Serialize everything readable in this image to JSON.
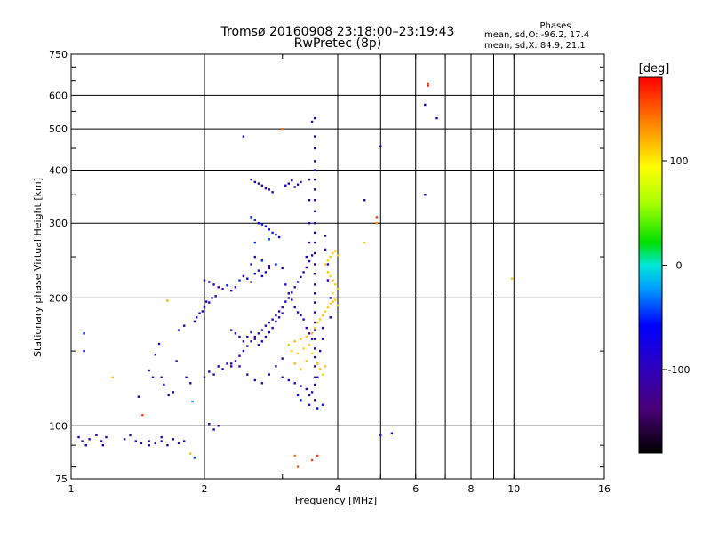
{
  "chart_data": {
    "type": "scatter",
    "title": "Tromsø 20160908 23:18:00–23:19:43",
    "subtitle": "RwPretec (8p)",
    "xlabel": "Frequency [MHz]",
    "ylabel": "Stationary phase Virtual Height [km]",
    "xscale": "log",
    "yscale": "log",
    "xlim": [
      1,
      16
    ],
    "ylim": [
      75,
      750
    ],
    "xticks": [
      1,
      2,
      4,
      6,
      8,
      10,
      16
    ],
    "xticks_minor_grid": [
      5,
      7,
      9
    ],
    "yticks": [
      75,
      100,
      200,
      300,
      400,
      500,
      600,
      750
    ],
    "grid": true,
    "stats": {
      "header": "Phases",
      "line1": "mean, sd,O: -96.2, 17.4",
      "line2": "mean, sd,X:  84.9, 21.1"
    },
    "colorbar": {
      "label": "[deg]",
      "range": [
        -180,
        180
      ],
      "ticks": [
        100,
        0,
        -100
      ]
    },
    "points": [
      [
        1.04,
        94,
        -105
      ],
      [
        1.06,
        92,
        -110
      ],
      [
        1.08,
        90,
        -100
      ],
      [
        1.1,
        93,
        -108
      ],
      [
        1.14,
        95,
        -112
      ],
      [
        1.17,
        92,
        -100
      ],
      [
        1.18,
        90,
        -105
      ],
      [
        1.2,
        94,
        -108
      ],
      [
        1.32,
        93,
        -110
      ],
      [
        1.36,
        95,
        -104
      ],
      [
        1.4,
        92,
        -108
      ],
      [
        1.44,
        91,
        -100
      ],
      [
        1.5,
        90,
        -112
      ],
      [
        1.55,
        91,
        -104
      ],
      [
        1.6,
        92,
        -110
      ],
      [
        1.65,
        90,
        -102
      ],
      [
        1.7,
        93,
        -108
      ],
      [
        1.75,
        91,
        -115
      ],
      [
        1.8,
        92,
        -100
      ],
      [
        1.86,
        86,
        110
      ],
      [
        1.9,
        84,
        -60
      ],
      [
        2.05,
        101,
        -120
      ],
      [
        2.1,
        98,
        -110
      ],
      [
        2.15,
        100,
        -130
      ],
      [
        1.07,
        165,
        -70
      ],
      [
        1.07,
        150,
        -75
      ],
      [
        1.24,
        130,
        110
      ],
      [
        1.42,
        117,
        -100
      ],
      [
        1.45,
        106,
        155
      ],
      [
        1.5,
        135,
        -100
      ],
      [
        1.53,
        130,
        -110
      ],
      [
        1.55,
        147,
        -108
      ],
      [
        1.58,
        156,
        -100
      ],
      [
        1.6,
        130,
        -112
      ],
      [
        1.62,
        125,
        -104
      ],
      [
        1.66,
        118,
        -110
      ],
      [
        1.7,
        120,
        -102
      ],
      [
        1.73,
        142,
        -100
      ],
      [
        1.75,
        168,
        -108
      ],
      [
        1.8,
        172,
        -112
      ],
      [
        1.82,
        130,
        -100
      ],
      [
        1.86,
        126,
        -104
      ],
      [
        1.88,
        114,
        -40
      ],
      [
        1.9,
        176,
        -108
      ],
      [
        1.92,
        180,
        -100
      ],
      [
        1.95,
        184,
        -112
      ],
      [
        1.98,
        186,
        -104
      ],
      [
        2.0,
        190,
        -110
      ],
      [
        2.02,
        196,
        -100
      ],
      [
        2.05,
        195,
        -108
      ],
      [
        2.08,
        200,
        -115
      ],
      [
        2.12,
        202,
        -104
      ],
      [
        1.65,
        197,
        120
      ],
      [
        2.0,
        220,
        -110
      ],
      [
        2.05,
        218,
        -104
      ],
      [
        2.1,
        215,
        -108
      ],
      [
        2.15,
        212,
        -100
      ],
      [
        2.2,
        210,
        -112
      ],
      [
        2.25,
        214,
        -70
      ],
      [
        2.3,
        208,
        -104
      ],
      [
        2.35,
        212,
        -108
      ],
      [
        2.4,
        220,
        -65
      ],
      [
        2.45,
        225,
        -100
      ],
      [
        2.5,
        222,
        -75
      ],
      [
        2.55,
        218,
        -108
      ],
      [
        2.6,
        228,
        -70
      ],
      [
        2.65,
        232,
        -104
      ],
      [
        2.7,
        225,
        -80
      ],
      [
        2.75,
        230,
        -100
      ],
      [
        2.8,
        235,
        -108
      ],
      [
        2.0,
        130,
        -110
      ],
      [
        2.05,
        134,
        -104
      ],
      [
        2.1,
        132,
        -108
      ],
      [
        2.15,
        138,
        -100
      ],
      [
        2.2,
        136,
        -112
      ],
      [
        2.25,
        140,
        -104
      ],
      [
        2.3,
        138,
        -108
      ],
      [
        2.35,
        142,
        -100
      ],
      [
        2.4,
        146,
        -110
      ],
      [
        2.45,
        150,
        -102
      ],
      [
        2.5,
        154,
        -108
      ],
      [
        2.55,
        158,
        -100
      ],
      [
        2.6,
        162,
        -112
      ],
      [
        2.65,
        165,
        -104
      ],
      [
        2.7,
        168,
        -108
      ],
      [
        2.75,
        172,
        -100
      ],
      [
        2.8,
        175,
        -110
      ],
      [
        2.85,
        178,
        -104
      ],
      [
        2.9,
        182,
        -108
      ],
      [
        2.95,
        186,
        -100
      ],
      [
        3.0,
        190,
        -112
      ],
      [
        3.05,
        196,
        -104
      ],
      [
        3.1,
        200,
        -108
      ],
      [
        3.15,
        206,
        -100
      ],
      [
        3.2,
        212,
        -110
      ],
      [
        3.25,
        218,
        -104
      ],
      [
        3.3,
        224,
        -108
      ],
      [
        3.35,
        230,
        -100
      ],
      [
        3.4,
        236,
        -112
      ],
      [
        3.45,
        244,
        -104
      ],
      [
        3.5,
        252,
        -108
      ],
      [
        2.3,
        168,
        -100
      ],
      [
        2.35,
        165,
        -108
      ],
      [
        2.4,
        162,
        -104
      ],
      [
        2.45,
        158,
        -112
      ],
      [
        2.5,
        162,
        -100
      ],
      [
        2.55,
        166,
        -108
      ],
      [
        2.6,
        160,
        -104
      ],
      [
        2.65,
        155,
        -110
      ],
      [
        2.7,
        158,
        -100
      ],
      [
        2.75,
        162,
        -108
      ],
      [
        2.8,
        166,
        -104
      ],
      [
        2.85,
        170,
        -112
      ],
      [
        2.9,
        176,
        -100
      ],
      [
        2.95,
        180,
        -108
      ],
      [
        3.0,
        184,
        -104
      ],
      [
        2.3,
        140,
        -100
      ],
      [
        2.4,
        138,
        -108
      ],
      [
        2.5,
        132,
        -104
      ],
      [
        2.6,
        128,
        -112
      ],
      [
        2.7,
        126,
        -100
      ],
      [
        2.8,
        132,
        -108
      ],
      [
        2.9,
        138,
        -104
      ],
      [
        3.0,
        144,
        -112
      ],
      [
        2.55,
        380,
        -100
      ],
      [
        2.6,
        375,
        -108
      ],
      [
        2.65,
        372,
        -104
      ],
      [
        2.7,
        368,
        -112
      ],
      [
        2.75,
        362,
        -100
      ],
      [
        2.8,
        360,
        -108
      ],
      [
        2.85,
        355,
        -104
      ],
      [
        3.05,
        368,
        -100
      ],
      [
        3.1,
        372,
        -108
      ],
      [
        3.15,
        378,
        -104
      ],
      [
        3.2,
        365,
        -112
      ],
      [
        3.25,
        370,
        -100
      ],
      [
        3.3,
        375,
        -108
      ],
      [
        2.55,
        310,
        -70
      ],
      [
        2.6,
        305,
        -65
      ],
      [
        2.65,
        300,
        -75
      ],
      [
        2.7,
        298,
        -70
      ],
      [
        2.75,
        295,
        -80
      ],
      [
        2.8,
        290,
        -72
      ],
      [
        2.85,
        285,
        -68
      ],
      [
        2.9,
        282,
        -70
      ],
      [
        2.95,
        278,
        -75
      ],
      [
        2.6,
        270,
        -65
      ],
      [
        2.8,
        275,
        -60
      ],
      [
        2.45,
        480,
        -100
      ],
      [
        2.55,
        240,
        -100
      ],
      [
        2.6,
        250,
        -104
      ],
      [
        2.7,
        245,
        -70
      ],
      [
        2.8,
        238,
        -108
      ],
      [
        2.9,
        240,
        -75
      ],
      [
        3.0,
        235,
        -100
      ],
      [
        3.05,
        215,
        -104
      ],
      [
        3.1,
        205,
        -108
      ],
      [
        3.15,
        198,
        -100
      ],
      [
        3.2,
        190,
        -112
      ],
      [
        3.25,
        185,
        -104
      ],
      [
        3.3,
        182,
        -108
      ],
      [
        3.35,
        178,
        -100
      ],
      [
        3.4,
        170,
        -112
      ],
      [
        3.45,
        165,
        -104
      ],
      [
        3.5,
        160,
        -108
      ],
      [
        3.5,
        520,
        -110
      ],
      [
        3.55,
        530,
        -104
      ],
      [
        3.55,
        480,
        -108
      ],
      [
        3.55,
        450,
        -100
      ],
      [
        3.55,
        420,
        -112
      ],
      [
        3.55,
        400,
        -104
      ],
      [
        3.55,
        380,
        -108
      ],
      [
        3.55,
        360,
        -100
      ],
      [
        3.55,
        340,
        -110
      ],
      [
        3.55,
        320,
        -104
      ],
      [
        3.55,
        300,
        -108
      ],
      [
        3.55,
        285,
        -100
      ],
      [
        3.55,
        270,
        -112
      ],
      [
        3.55,
        255,
        -104
      ],
      [
        3.55,
        240,
        -108
      ],
      [
        3.55,
        228,
        -100
      ],
      [
        3.55,
        215,
        -110
      ],
      [
        3.55,
        205,
        -104
      ],
      [
        3.55,
        195,
        -108
      ],
      [
        3.55,
        185,
        -100
      ],
      [
        3.55,
        175,
        -112
      ],
      [
        3.55,
        168,
        -104
      ],
      [
        3.55,
        160,
        -108
      ],
      [
        3.55,
        152,
        -100
      ],
      [
        3.55,
        145,
        -110
      ],
      [
        3.55,
        138,
        -104
      ],
      [
        3.55,
        130,
        -108
      ],
      [
        3.55,
        125,
        -100
      ],
      [
        3.45,
        380,
        -108
      ],
      [
        3.45,
        340,
        -100
      ],
      [
        3.45,
        300,
        -104
      ],
      [
        3.45,
        270,
        -110
      ],
      [
        3.4,
        250,
        -102
      ],
      [
        3.75,
        280,
        -100
      ],
      [
        3.75,
        260,
        -108
      ],
      [
        3.8,
        240,
        -104
      ],
      [
        3.8,
        220,
        -110
      ],
      [
        3.85,
        200,
        -100
      ],
      [
        3.85,
        180,
        -108
      ],
      [
        3.7,
        170,
        -104
      ],
      [
        3.7,
        160,
        -112
      ],
      [
        3.65,
        150,
        -100
      ],
      [
        3.6,
        140,
        -108
      ],
      [
        3.6,
        130,
        -104
      ],
      [
        3.5,
        120,
        -100
      ],
      [
        3.4,
        122,
        -108
      ],
      [
        3.3,
        124,
        -104
      ],
      [
        3.2,
        126,
        -112
      ],
      [
        3.1,
        128,
        -100
      ],
      [
        3.0,
        130,
        -108
      ],
      [
        3.55,
        115,
        -104
      ],
      [
        3.45,
        118,
        -110
      ],
      [
        3.1,
        155,
        110
      ],
      [
        3.15,
        150,
        105
      ],
      [
        3.2,
        158,
        115
      ],
      [
        3.25,
        148,
        108
      ],
      [
        3.3,
        160,
        112
      ],
      [
        3.35,
        152,
        105
      ],
      [
        3.4,
        162,
        110
      ],
      [
        3.45,
        155,
        108
      ],
      [
        3.5,
        165,
        115
      ],
      [
        3.55,
        170,
        105
      ],
      [
        3.6,
        175,
        110
      ],
      [
        3.65,
        178,
        108
      ],
      [
        3.7,
        182,
        112
      ],
      [
        3.75,
        186,
        105
      ],
      [
        3.8,
        190,
        110
      ],
      [
        3.85,
        194,
        108
      ],
      [
        3.9,
        196,
        112
      ],
      [
        3.95,
        198,
        105
      ],
      [
        4.0,
        192,
        110
      ],
      [
        3.6,
        140,
        108
      ],
      [
        3.65,
        136,
        112
      ],
      [
        3.7,
        132,
        105
      ],
      [
        3.75,
        138,
        110
      ],
      [
        3.2,
        140,
        115
      ],
      [
        3.3,
        136,
        108
      ],
      [
        3.4,
        142,
        112
      ],
      [
        3.5,
        148,
        105
      ],
      [
        3.75,
        240,
        110
      ],
      [
        3.8,
        245,
        108
      ],
      [
        3.85,
        250,
        112
      ],
      [
        3.9,
        255,
        105
      ],
      [
        3.95,
        258,
        110
      ],
      [
        4.0,
        252,
        108
      ],
      [
        3.8,
        230,
        112
      ],
      [
        3.85,
        225,
        105
      ],
      [
        3.9,
        220,
        110
      ],
      [
        3.95,
        215,
        108
      ],
      [
        4.0,
        210,
        112
      ],
      [
        3.9,
        205,
        105
      ],
      [
        3.25,
        118,
        -70
      ],
      [
        3.3,
        115,
        -65
      ],
      [
        3.45,
        112,
        -70
      ],
      [
        3.6,
        110,
        -75
      ],
      [
        3.7,
        112,
        -68
      ],
      [
        6.4,
        640,
        165
      ],
      [
        6.4,
        632,
        170
      ],
      [
        6.3,
        570,
        -80
      ],
      [
        6.7,
        530,
        -100
      ],
      [
        6.3,
        350,
        -100
      ],
      [
        5.0,
        455,
        -105
      ],
      [
        4.6,
        340,
        -108
      ],
      [
        4.9,
        310,
        160
      ],
      [
        4.9,
        300,
        130
      ],
      [
        5.0,
        95,
        -70
      ],
      [
        5.3,
        96,
        -100
      ],
      [
        4.6,
        270,
        105
      ],
      [
        3.2,
        85,
        140
      ],
      [
        3.25,
        80,
        150
      ],
      [
        3.5,
        83,
        155
      ],
      [
        3.6,
        85,
        160
      ],
      [
        9.9,
        222,
        110
      ],
      [
        3.0,
        500,
        140
      ],
      [
        1.5,
        92,
        -100
      ],
      [
        1.6,
        94,
        -108
      ]
    ]
  }
}
